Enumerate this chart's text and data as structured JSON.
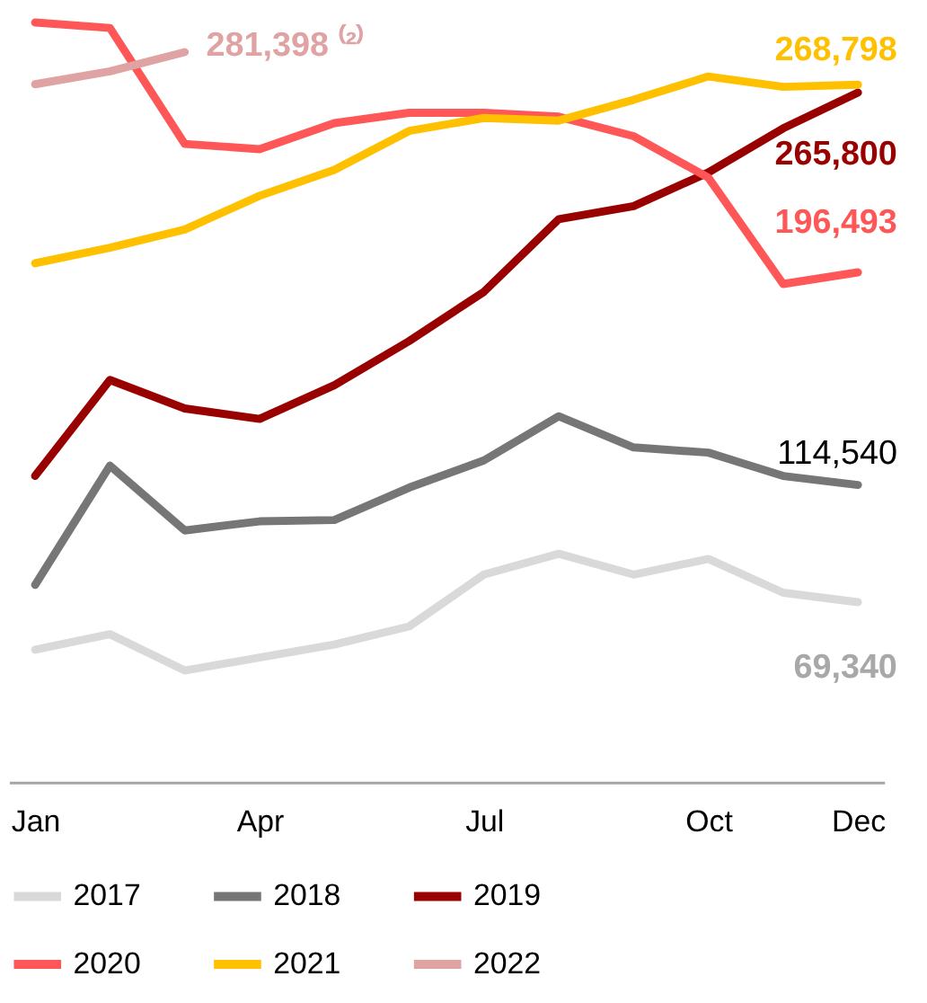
{
  "chart_data": {
    "type": "line",
    "categories": [
      "Jan",
      null,
      null,
      "Apr",
      null,
      null,
      "Jul",
      null,
      null,
      "Oct",
      null,
      "Dec"
    ],
    "series": [
      {
        "name": "2017",
        "color": "#d9d9d9",
        "values": [
          51000,
          57000,
          43000,
          48000,
          53000,
          60000,
          80000,
          88000,
          80000,
          86000,
          73000,
          69340
        ],
        "value_labels": [
          null,
          null,
          null,
          null,
          null,
          null,
          null,
          null,
          null,
          null,
          null,
          "69,340"
        ]
      },
      {
        "name": "2018",
        "color": "#767676",
        "values": [
          76000,
          122000,
          97000,
          100500,
          101000,
          113500,
          124000,
          141000,
          129000,
          127000,
          118000,
          114540
        ],
        "value_labels": [
          null,
          null,
          null,
          null,
          null,
          null,
          null,
          null,
          null,
          null,
          null,
          "114,540"
        ]
      },
      {
        "name": "2019",
        "color": "#990000",
        "values": [
          118000,
          155000,
          144000,
          140000,
          153000,
          170000,
          189000,
          217000,
          222000,
          235000,
          252000,
          265800
        ],
        "value_labels": [
          null,
          null,
          null,
          null,
          null,
          null,
          null,
          null,
          null,
          null,
          null,
          "265,800"
        ]
      },
      {
        "name": "2020",
        "color": "#ff5757",
        "values": [
          292800,
          290700,
          246000,
          244000,
          254000,
          258000,
          258000,
          256500,
          249000,
          233000,
          192000,
          196493
        ],
        "value_labels": [
          null,
          null,
          null,
          null,
          null,
          null,
          null,
          null,
          null,
          null,
          null,
          "196,493"
        ]
      },
      {
        "name": "2021",
        "color": "#ffc000",
        "values": [
          200000,
          206000,
          213000,
          226000,
          236000,
          251000,
          256000,
          255000,
          263000,
          272000,
          268000,
          268798
        ],
        "value_labels": [
          null,
          null,
          null,
          null,
          null,
          null,
          null,
          null,
          null,
          null,
          null,
          "268,798"
        ]
      },
      {
        "name": "2022",
        "color": "#e0a3a3",
        "values": [
          269000,
          274000,
          281398,
          null,
          null,
          null,
          null,
          null,
          null,
          null,
          null,
          null
        ],
        "value_labels": [
          null,
          null,
          "281,398 ⁽²⁾",
          null,
          null,
          null,
          null,
          null,
          null,
          null,
          null,
          null
        ]
      }
    ],
    "tick_labels": "x",
    "legend": "bottom",
    "grid": false
  }
}
